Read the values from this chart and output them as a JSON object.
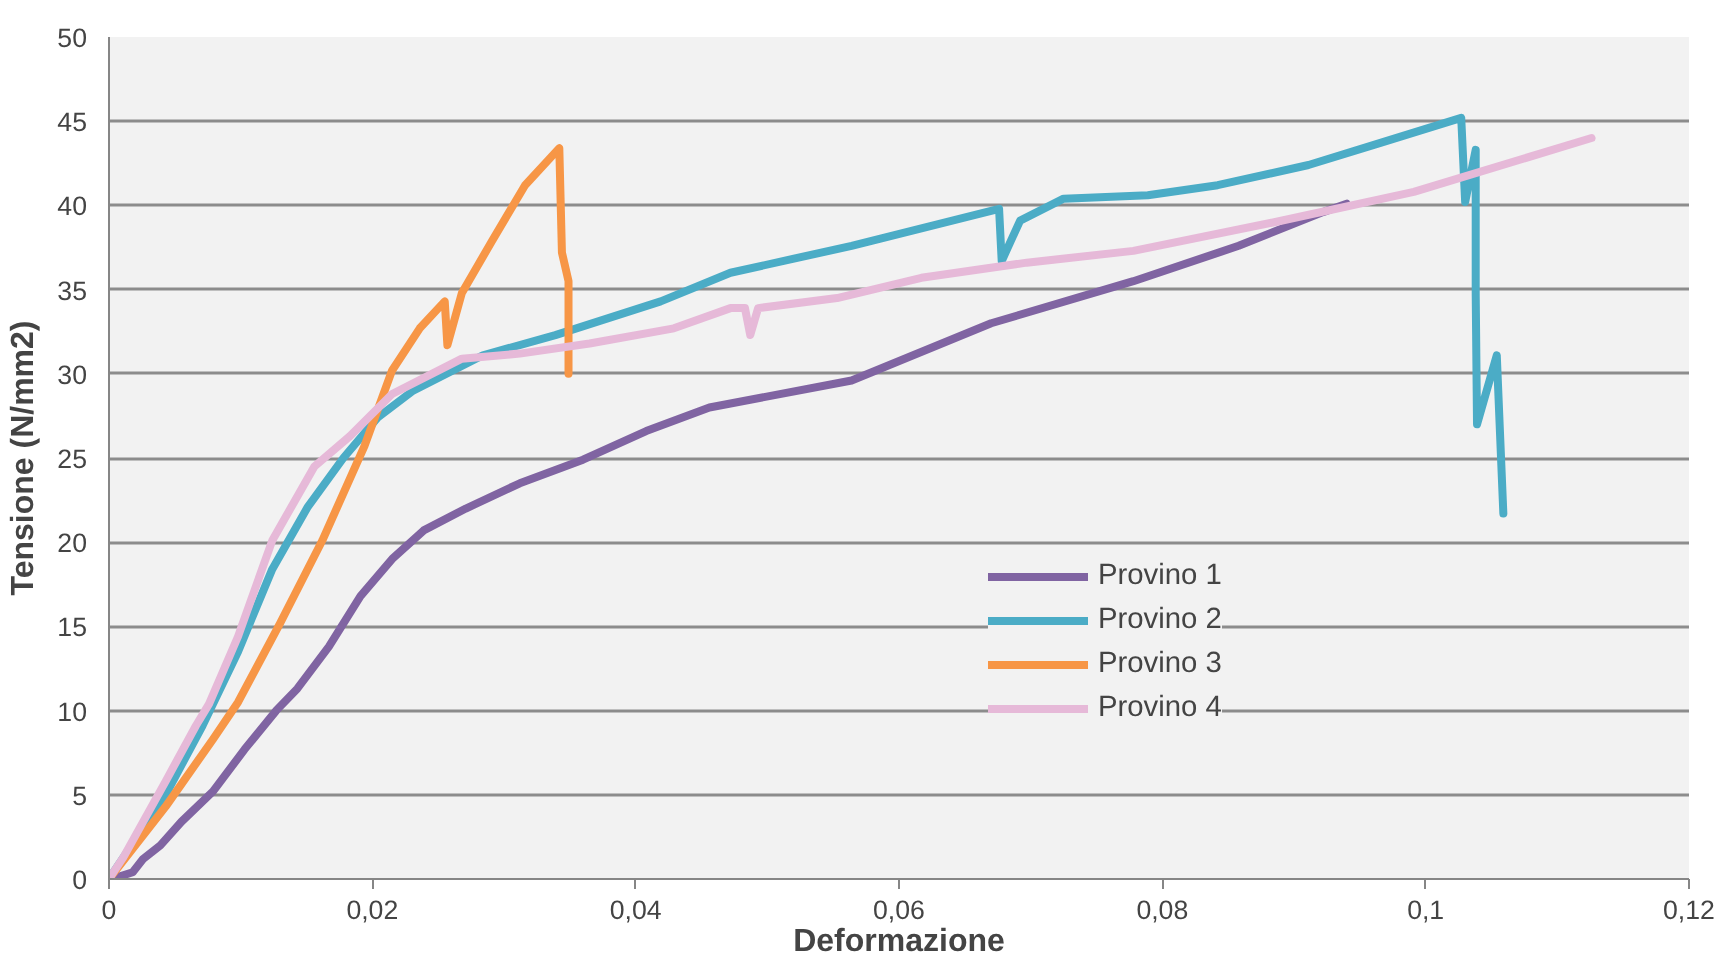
{
  "chart_data": {
    "type": "line",
    "xlabel": "Deformazione",
    "ylabel": "Tensione (N/mm2)",
    "xlim": [
      0,
      0.12
    ],
    "ylim": [
      0,
      50
    ],
    "xticks": [
      0,
      {
        "value": 0.02,
        "label": "0,02"
      },
      {
        "value": 0.04,
        "label": "0,04"
      },
      {
        "value": 0.06,
        "label": "0,06"
      },
      {
        "value": 0.08,
        "label": "0,08"
      },
      {
        "value": 0.1,
        "label": "0,1"
      },
      {
        "value": 0.12,
        "label": "0,12"
      }
    ],
    "yticks": [
      0,
      5,
      10,
      15,
      20,
      25,
      30,
      35,
      40,
      45,
      50
    ],
    "grid": "y",
    "legend": "bottom right",
    "line_style": "solid",
    "series": [
      {
        "name": "Provino 1",
        "color": "#8064a2",
        "x": [
          0,
          0.0006,
          0.0018,
          0.0026,
          0.0039,
          0.0055,
          0.0079,
          0.0103,
          0.0127,
          0.0143,
          0.0167,
          0.0191,
          0.0215,
          0.0239,
          0.0271,
          0.0312,
          0.036,
          0.0408,
          0.0456,
          0.0564,
          0.067,
          0.0778,
          0.0858,
          0.0922,
          0.094
        ],
        "values": [
          0,
          0.1,
          0.4,
          1.2,
          2,
          3.4,
          5.2,
          7.7,
          10,
          11.3,
          13.8,
          16.8,
          19,
          20.7,
          22,
          23.5,
          24.9,
          26.6,
          28,
          29.6,
          33,
          35.5,
          37.6,
          39.6,
          40.1
        ]
      },
      {
        "name": "Provino 2",
        "color": "#4bacc6",
        "x": [
          0,
          0.0043,
          0.0071,
          0.0098,
          0.0124,
          0.0151,
          0.0178,
          0.0204,
          0.0231,
          0.0284,
          0.0339,
          0.0419,
          0.0472,
          0.0564,
          0.0676,
          0.0678,
          0.0692,
          0.0725,
          0.0789,
          0.0842,
          0.0911,
          0.0965,
          0.1027,
          0.103,
          0.1038,
          0.1038,
          0.1039,
          0.1054,
          0.1059
        ],
        "values": [
          0,
          5,
          9.1,
          13.5,
          18.4,
          22.1,
          25,
          27.4,
          29,
          31.1,
          32.3,
          34.3,
          36,
          37.6,
          39.8,
          36.7,
          39.1,
          40.4,
          40.6,
          41.2,
          42.4,
          43.7,
          45.2,
          40.2,
          43.3,
          34.8,
          27,
          31.1,
          21.7
        ]
      },
      {
        "name": "Provino 3",
        "color": "#f79646",
        "x": [
          0,
          0.0043,
          0.0079,
          0.0098,
          0.013,
          0.0162,
          0.0194,
          0.0215,
          0.0236,
          0.0255,
          0.0257,
          0.0268,
          0.0291,
          0.0316,
          0.0342,
          0.0344,
          0.0349,
          0.0349
        ],
        "values": [
          0,
          4.3,
          8.3,
          10.5,
          15.2,
          20.1,
          25.7,
          30.2,
          32.7,
          34.3,
          31.7,
          34.8,
          37.9,
          41.2,
          43.4,
          37.2,
          35.5,
          30
        ]
      },
      {
        "name": "Provino 4",
        "color": "#e6b9d8",
        "x": [
          0,
          0.0011,
          0.0043,
          0.0066,
          0.0076,
          0.0098,
          0.0124,
          0.0156,
          0.0183,
          0.0215,
          0.0268,
          0.0312,
          0.0365,
          0.0429,
          0.0472,
          0.0483,
          0.0487,
          0.0493,
          0.0553,
          0.0617,
          0.0697,
          0.0778,
          0.0885,
          0.0991,
          0.1126
        ],
        "values": [
          0,
          1.3,
          5.8,
          9.1,
          10.4,
          14.4,
          20.1,
          24.5,
          26.3,
          28.8,
          30.9,
          31.2,
          31.8,
          32.7,
          33.9,
          33.9,
          32.3,
          33.9,
          34.5,
          35.7,
          36.6,
          37.3,
          39,
          40.8,
          44
        ]
      }
    ]
  }
}
